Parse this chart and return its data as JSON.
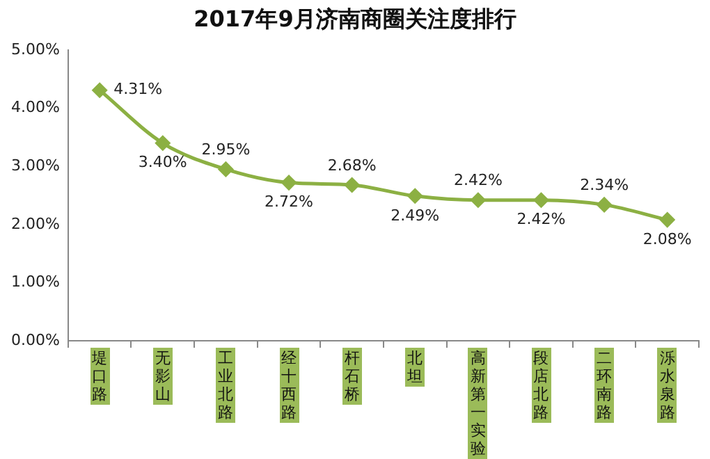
{
  "chart_data": {
    "type": "line",
    "title": "2017年9月济南商圈关注度排行",
    "categories": [
      "堤口路",
      "无影山",
      "工业北路",
      "经十西路",
      "杆石桥",
      "北坦",
      "高新第一实验",
      "段店北路",
      "二环南路",
      "泺水泉路"
    ],
    "series": [
      {
        "color": "#8cb043",
        "values": [
          4.31,
          3.4,
          2.95,
          2.72,
          2.68,
          2.49,
          2.42,
          2.42,
          2.34,
          2.08
        ],
        "value_labels": [
          "4.31%",
          "3.40%",
          "2.95%",
          "2.72%",
          "2.68%",
          "2.49%",
          "2.42%",
          "2.42%",
          "2.34%",
          "2.08%"
        ]
      }
    ],
    "ylim": [
      0,
      5
    ],
    "yticks": [
      {
        "value": 0,
        "label": "0.00%"
      },
      {
        "value": 1,
        "label": "1.00%"
      },
      {
        "value": 2,
        "label": "2.00%"
      },
      {
        "value": 3,
        "label": "3.00%"
      },
      {
        "value": 4,
        "label": "4.00%"
      },
      {
        "value": 5,
        "label": "5.00%"
      }
    ],
    "grid": false,
    "legend": false,
    "marker": "diamond",
    "line_style": "solid"
  }
}
